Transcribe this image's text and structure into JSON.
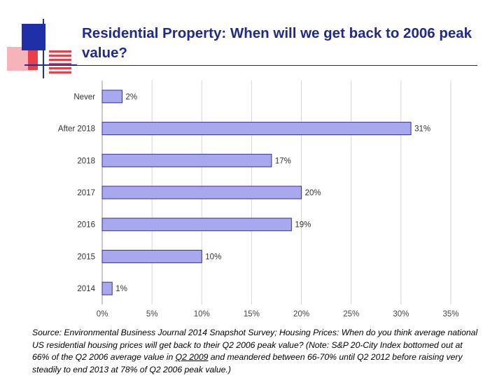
{
  "slide": {
    "title": "Residential Property: When will we get back to 2006 peak value?",
    "source": {
      "part1": "Source: Environmental Business Journal 2014 Snapshot Survey; Housing Prices: When do you think average national US residential housing prices will get back to their Q2 2006 peak value? (Note: S&P 20-City Index bottomed out at 66% of the Q2 2006 average value in ",
      "underlined": "Q2 2009",
      "part2": " and meandered between 66-70% until Q2 2012 before raising very steadily to end 2013 at 78% of Q2 2006 peak value.)"
    }
  },
  "colors": {
    "bar_fill": "#a8a8ee",
    "bar_stroke": "#33338c",
    "title": "#1f2a8c",
    "logo_blue": "#1f2fa8",
    "logo_red": "#e8404a",
    "logo_pink": "#f7b3ba"
  },
  "chart_data": {
    "type": "bar",
    "orientation": "horizontal",
    "categories": [
      "Never",
      "After 2018",
      "2018",
      "2017",
      "2016",
      "2015",
      "2014"
    ],
    "values": [
      2,
      31,
      17,
      20,
      19,
      10,
      1
    ],
    "value_labels": [
      "2%",
      "31%",
      "17%",
      "20%",
      "19%",
      "10%",
      "1%"
    ],
    "xlim": [
      0,
      35
    ],
    "xticks": [
      0,
      5,
      10,
      15,
      20,
      25,
      30,
      35
    ],
    "xtick_labels": [
      "0%",
      "5%",
      "10%",
      "15%",
      "20%",
      "25%",
      "30%",
      "35%"
    ],
    "grid": true,
    "legend": "none",
    "title": "",
    "xlabel": "",
    "ylabel": ""
  }
}
